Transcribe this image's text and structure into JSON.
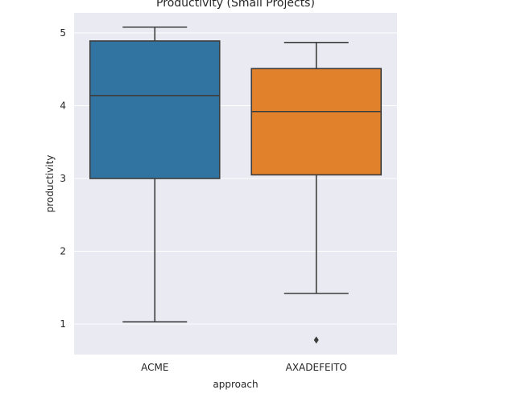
{
  "chart_data": {
    "type": "box",
    "title": "Productivity (Small Projects)",
    "xlabel": "approach",
    "ylabel": "productivity",
    "ylim": [
      0.55,
      5.25
    ],
    "yticks": [
      1,
      2,
      3,
      4,
      5
    ],
    "grid": true,
    "categories": [
      "ACME",
      "AXADEFEITO"
    ],
    "boxes": [
      {
        "category": "ACME",
        "whisker_low": 1.03,
        "q1": 3.0,
        "median": 4.14,
        "q3": 4.89,
        "whisker_high": 5.08,
        "outliers": [],
        "color": "#3274a1"
      },
      {
        "category": "AXADEFEITO",
        "whisker_low": 1.42,
        "q1": 3.05,
        "median": 3.92,
        "q3": 4.51,
        "whisker_high": 4.87,
        "outliers": [
          0.78
        ],
        "color": "#e1812c"
      }
    ]
  },
  "colors": {
    "plot_background": "#eaeaf2",
    "grid": "#ffffff",
    "line": "#3d3d3d"
  }
}
